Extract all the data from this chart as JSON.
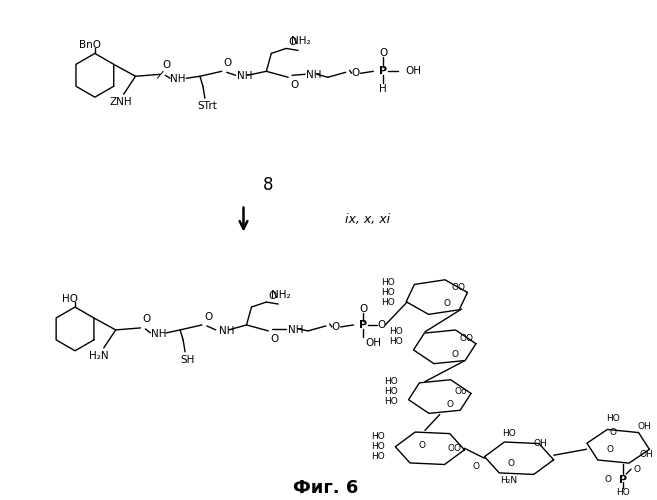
{
  "background_color": "#ffffff",
  "fig_caption": "Фиг. 6",
  "caption_fontsize": 13,
  "reaction_label": "ix, x, xi",
  "compound_label": "8",
  "structure_color": "#000000",
  "line_width": 1.0,
  "fig_width": 6.57,
  "fig_height": 5.0,
  "dpi": 100
}
